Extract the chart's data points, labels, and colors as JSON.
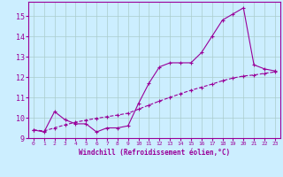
{
  "xlabel": "Windchill (Refroidissement éolien,°C)",
  "background_color": "#cceeff",
  "line_color": "#990099",
  "grid_color": "#aacccc",
  "xlim": [
    -0.5,
    23.5
  ],
  "ylim": [
    9.0,
    15.7
  ],
  "xticks": [
    0,
    1,
    2,
    3,
    4,
    5,
    6,
    7,
    8,
    9,
    10,
    11,
    12,
    13,
    14,
    15,
    16,
    17,
    18,
    19,
    20,
    21,
    22,
    23
  ],
  "yticks": [
    9,
    10,
    11,
    12,
    13,
    14,
    15
  ],
  "line1_x": [
    0,
    1,
    2,
    3,
    4,
    5,
    6,
    7,
    8,
    9,
    10,
    11,
    12,
    13,
    14,
    15,
    16,
    17,
    18,
    19,
    20,
    21,
    22,
    23
  ],
  "line1_y": [
    9.4,
    9.3,
    10.3,
    9.9,
    9.7,
    9.7,
    9.3,
    9.5,
    9.5,
    9.6,
    10.7,
    11.7,
    12.5,
    12.7,
    12.7,
    12.7,
    13.2,
    14.0,
    14.8,
    15.1,
    15.4,
    12.6,
    12.4,
    12.3
  ],
  "line2_x": [
    0,
    1,
    2,
    3,
    4,
    5,
    6,
    7,
    8,
    9,
    10,
    11,
    12,
    13,
    14,
    15,
    16,
    17,
    18,
    19,
    20,
    21,
    22,
    23
  ],
  "line2_y": [
    9.4,
    9.35,
    9.5,
    9.65,
    9.78,
    9.88,
    9.97,
    10.05,
    10.13,
    10.22,
    10.42,
    10.62,
    10.82,
    11.0,
    11.18,
    11.35,
    11.5,
    11.65,
    11.82,
    11.95,
    12.05,
    12.1,
    12.18,
    12.25
  ]
}
